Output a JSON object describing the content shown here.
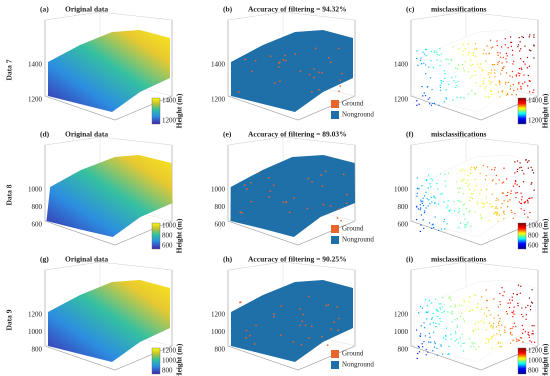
{
  "rows": [
    {
      "label": "Data 7",
      "panels": [
        {
          "tag": "(a)",
          "title": "Original data",
          "zticks": [
            "1400",
            "1200"
          ],
          "colorbar": {
            "ticks": [
              "1400",
              "1200"
            ],
            "label": "Height (m)"
          }
        },
        {
          "tag": "(b)",
          "title": "Accuracy of filtering = 94.32%",
          "zticks": [
            "1400",
            "1200"
          ],
          "legend": [
            "Ground",
            "Nonground"
          ]
        },
        {
          "tag": "(c)",
          "title": "misclassifications",
          "zticks": [
            "1400",
            "1200"
          ],
          "colorbar": {
            "ticks": [
              "1400",
              "1200"
            ],
            "label": "Height (m)"
          }
        }
      ]
    },
    {
      "label": "Data 8",
      "panels": [
        {
          "tag": "(d)",
          "title": "Original data",
          "zticks": [
            "1000",
            "800",
            "600"
          ],
          "colorbar": {
            "ticks": [
              "1000",
              "800",
              "600"
            ],
            "label": "Height (m)"
          }
        },
        {
          "tag": "(e)",
          "title": "Accuracy of filtering = 89.03%",
          "zticks": [
            "1000",
            "800",
            "600"
          ],
          "legend": [
            "Ground",
            "Nonground"
          ]
        },
        {
          "tag": "(f)",
          "title": "misclassifications",
          "zticks": [
            "1000",
            "800",
            "600"
          ],
          "colorbar": {
            "ticks": [
              "1000",
              "800",
              "600"
            ],
            "label": "Height (m)"
          }
        }
      ]
    },
    {
      "label": "Data 9",
      "panels": [
        {
          "tag": "(g)",
          "title": "Original data",
          "zticks": [
            "1200",
            "1000",
            "800"
          ],
          "colorbar": {
            "ticks": [
              "1200",
              "1000",
              "800"
            ],
            "label": "Height (m)"
          }
        },
        {
          "tag": "(h)",
          "title": "Accuracy of filtering = 90.25%",
          "zticks": [
            "1200",
            "1000",
            "800"
          ],
          "legend": [
            "Ground",
            "Nonground"
          ]
        },
        {
          "tag": "(i)",
          "title": "misclassifications",
          "zticks": [
            "1200",
            "1000",
            "800"
          ],
          "colorbar": {
            "ticks": [
              "1200",
              "1000",
              "800"
            ],
            "label": "Height (m)"
          }
        }
      ]
    }
  ]
}
